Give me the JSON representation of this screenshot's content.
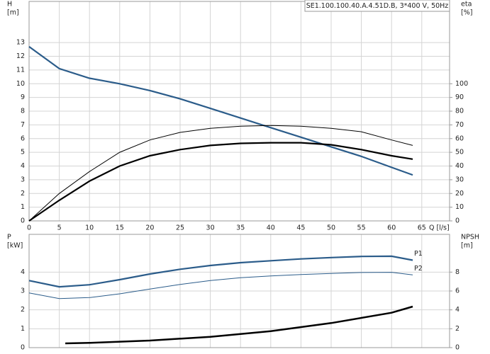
{
  "chart_data": [
    {
      "type": "line",
      "title": "SE1.100.100.40.A.4.51D.B, 3*400 V, 50Hz",
      "ylabel": [
        "H",
        "[m]"
      ],
      "y2label": [
        "eta",
        "[%]"
      ],
      "xlabel": "Q [l/s]",
      "xlim": [
        0,
        69.6
      ],
      "xticks": [
        0,
        5,
        10,
        15,
        20,
        25,
        30,
        35,
        40,
        45,
        50,
        55,
        60,
        65
      ],
      "ylim": [
        0,
        16
      ],
      "yticks": [
        0,
        1,
        2,
        3,
        4,
        5,
        6,
        7,
        8,
        9,
        10,
        11,
        12,
        13
      ],
      "y2lim": [
        0,
        160
      ],
      "y2ticks": [
        0,
        10,
        20,
        30,
        40,
        50,
        60,
        70,
        80,
        90,
        100
      ],
      "grid": true,
      "series": [
        {
          "color": "#2b5c8a",
          "width": 2.2,
          "x": [
            0,
            5,
            10,
            15,
            20,
            25,
            30,
            35,
            40,
            45,
            50,
            55,
            60,
            63.5
          ],
          "values": [
            12.7,
            11.1,
            10.4,
            10.0,
            9.5,
            8.9,
            8.2,
            7.5,
            6.8,
            6.1,
            5.4,
            4.7,
            3.9,
            3.35
          ]
        },
        {
          "color": "#000000",
          "width": 1,
          "axis": "y2",
          "x": [
            0,
            5,
            10,
            15,
            20,
            25,
            30,
            35,
            40,
            45,
            50,
            55,
            60,
            63.5
          ],
          "values": [
            0,
            20,
            36,
            50,
            59,
            64.5,
            67.5,
            69,
            69.5,
            69,
            67.5,
            65,
            59,
            55
          ]
        },
        {
          "color": "#000000",
          "width": 2.2,
          "axis": "y2",
          "x": [
            0,
            5,
            10,
            15,
            20,
            25,
            30,
            35,
            40,
            45,
            50,
            55,
            60,
            63.5
          ],
          "values": [
            0,
            15,
            29,
            40,
            47.5,
            52,
            55,
            56.5,
            57,
            57,
            55.5,
            52,
            47.5,
            45
          ]
        }
      ]
    },
    {
      "type": "line",
      "ylabel": [
        "P",
        "[kW]"
      ],
      "y2label": [
        "NPSH",
        "[m]"
      ],
      "xlim": [
        0,
        69.6
      ],
      "xticks": [
        0,
        5,
        10,
        15,
        20,
        25,
        30,
        35,
        40,
        45,
        50,
        55,
        60,
        65
      ],
      "ylim": [
        0,
        6
      ],
      "yticks": [
        0,
        1,
        2,
        3,
        4
      ],
      "y2lim": [
        0,
        12
      ],
      "y2ticks": [
        0,
        2,
        4,
        6,
        8
      ],
      "grid": true,
      "series": [
        {
          "name": "P1",
          "color": "#2b5c8a",
          "width": 2.2,
          "x": [
            0,
            5,
            10,
            15,
            20,
            25,
            30,
            35,
            40,
            45,
            50,
            55,
            60,
            63.5
          ],
          "values": [
            3.55,
            3.22,
            3.33,
            3.6,
            3.9,
            4.15,
            4.35,
            4.5,
            4.6,
            4.7,
            4.77,
            4.83,
            4.84,
            4.63
          ]
        },
        {
          "name": "P2",
          "color": "#2b5c8a",
          "width": 1,
          "x": [
            0,
            5,
            10,
            15,
            20,
            25,
            30,
            35,
            40,
            45,
            50,
            55,
            60,
            63.5
          ],
          "values": [
            2.9,
            2.6,
            2.65,
            2.85,
            3.1,
            3.35,
            3.55,
            3.7,
            3.8,
            3.87,
            3.93,
            3.98,
            3.99,
            3.85
          ]
        },
        {
          "color": "#000000",
          "width": 2.5,
          "axis": "y2",
          "x": [
            6,
            10,
            20,
            30,
            40,
            50,
            60,
            63.5
          ],
          "values": [
            0.45,
            0.5,
            0.75,
            1.15,
            1.75,
            2.6,
            3.7,
            4.35
          ]
        }
      ]
    }
  ]
}
